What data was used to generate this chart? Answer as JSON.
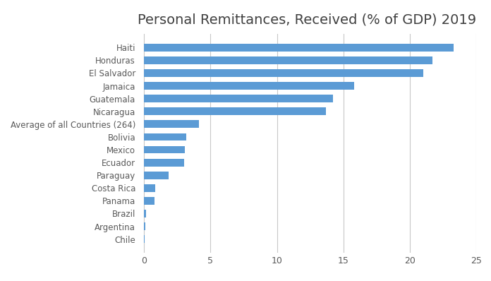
{
  "title": "Personal Remittances, Received (% of GDP) 2019",
  "categories": [
    "Chile",
    "Argentina",
    "Brazil",
    "Panama",
    "Costa Rica",
    "Paraguay",
    "Ecuador",
    "Mexico",
    "Bolivia",
    "Average of all Countries (264)",
    "Nicaragua",
    "Guatemala",
    "Jamaica",
    "El Salvador",
    "Honduras",
    "Haiti"
  ],
  "values": [
    0.04,
    0.07,
    0.16,
    0.76,
    0.85,
    1.85,
    3.0,
    3.05,
    3.15,
    4.1,
    13.7,
    14.2,
    15.8,
    21.0,
    21.7,
    23.3
  ],
  "bar_color": "#5B9BD5",
  "background_color": "#FFFFFF",
  "xlim": [
    -0.5,
    25
  ],
  "xticks": [
    0,
    5,
    10,
    15,
    20,
    25
  ],
  "grid_color": "#C8C8C8",
  "title_fontsize": 14,
  "label_fontsize": 8.5,
  "tick_fontsize": 9
}
